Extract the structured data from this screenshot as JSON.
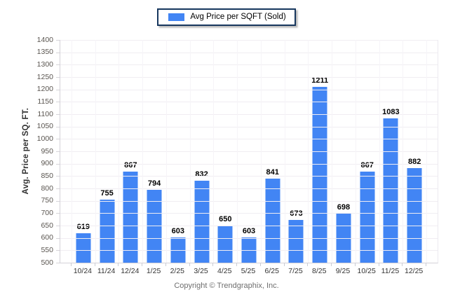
{
  "legend": {
    "label": "Avg Price per SQFT (Sold)"
  },
  "colors": {
    "bar": "#4285f4",
    "legend_border": "#17375e",
    "gridline": "#f0edf2",
    "axis_line": "#d3d1d8"
  },
  "footer": {
    "text": "Copyright © Trendgraphix, Inc."
  },
  "chart_data": {
    "type": "bar",
    "title": "",
    "series_name": "Avg Price per SQFT (Sold)",
    "categories": [
      "10/24",
      "11/24",
      "12/24",
      "1/25",
      "2/25",
      "3/25",
      "4/25",
      "5/25",
      "6/25",
      "7/25",
      "8/25",
      "9/25",
      "10/25",
      "11/25",
      "12/25"
    ],
    "values": [
      619,
      755,
      867,
      794,
      603,
      832,
      650,
      603,
      841,
      673,
      1211,
      698,
      867,
      1083,
      882
    ],
    "xlabel": "",
    "ylabel": "Avg. Price per SQ. FT.",
    "ylim": [
      500,
      1400
    ],
    "ytick_step": 50,
    "grid": "horizontal-major",
    "legend_position": "top-center",
    "bar_color": "#4285f4",
    "value_labels": true
  }
}
